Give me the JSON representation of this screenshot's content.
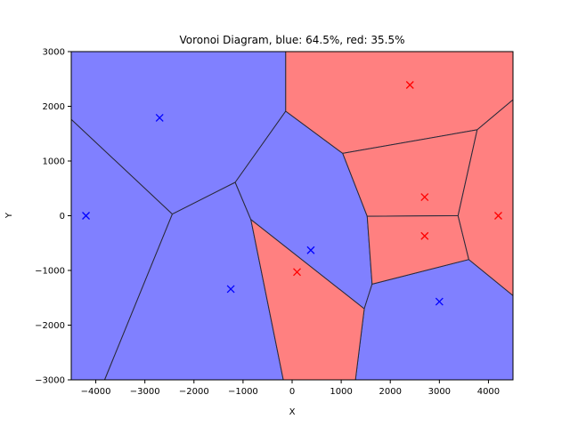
{
  "chart_data": {
    "type": "voronoi",
    "title": "Voronoi Diagram, blue: 64.5%, red: 35.5%",
    "xlabel": "X",
    "ylabel": "Y",
    "xlim": [
      -4500,
      4500
    ],
    "ylim": [
      -3000,
      3000
    ],
    "xticks": [
      -4000,
      -3000,
      -2000,
      -1000,
      0,
      1000,
      2000,
      3000,
      4000
    ],
    "yticks": [
      -3000,
      -2000,
      -1000,
      0,
      1000,
      2000,
      3000
    ],
    "colors": {
      "blue_fill": "#8080ff",
      "red_fill": "#ff8080",
      "blue_marker": "#0000ff",
      "red_marker": "#ff0000",
      "edge": "#2a2a3a"
    },
    "sites": [
      {
        "class": "blue",
        "x": -4200,
        "y": 0
      },
      {
        "class": "blue",
        "x": -2700,
        "y": 1790
      },
      {
        "class": "blue",
        "x": -1250,
        "y": -1340
      },
      {
        "class": "blue",
        "x": 380,
        "y": -630
      },
      {
        "class": "blue",
        "x": 3000,
        "y": -1570
      },
      {
        "class": "red",
        "x": 2400,
        "y": 2390
      },
      {
        "class": "red",
        "x": 2700,
        "y": 340
      },
      {
        "class": "red",
        "x": 2700,
        "y": -370
      },
      {
        "class": "red",
        "x": 4200,
        "y": 0
      },
      {
        "class": "red",
        "x": 100,
        "y": -1030
      }
    ],
    "cells": [
      {
        "class": "blue",
        "polygon": [
          [
            -4500,
            3000
          ],
          [
            -130,
            3000
          ],
          [
            -130,
            1910
          ],
          [
            -1160,
            610
          ],
          [
            -2440,
            30
          ],
          [
            -4500,
            1760
          ]
        ]
      },
      {
        "class": "blue",
        "polygon": [
          [
            -4500,
            1760
          ],
          [
            -2440,
            30
          ],
          [
            -3820,
            -3000
          ],
          [
            -4500,
            -3000
          ]
        ]
      },
      {
        "class": "blue",
        "polygon": [
          [
            -2440,
            30
          ],
          [
            -1160,
            610
          ],
          [
            -840,
            -70
          ],
          [
            -180,
            -3000
          ],
          [
            -3820,
            -3000
          ]
        ]
      },
      {
        "class": "blue",
        "polygon": [
          [
            -130,
            1910
          ],
          [
            1030,
            1140
          ],
          [
            1530,
            -10
          ],
          [
            1630,
            -1250
          ],
          [
            1470,
            -1700
          ],
          [
            -840,
            -70
          ],
          [
            -1160,
            610
          ]
        ]
      },
      {
        "class": "blue",
        "polygon": [
          [
            1470,
            -1700
          ],
          [
            1630,
            -1250
          ],
          [
            3600,
            -800
          ],
          [
            4500,
            -1460
          ],
          [
            4500,
            -3000
          ],
          [
            1290,
            -3000
          ]
        ]
      },
      {
        "class": "red",
        "polygon": [
          [
            -130,
            3000
          ],
          [
            4500,
            3000
          ],
          [
            4500,
            2120
          ],
          [
            3770,
            1570
          ],
          [
            1030,
            1140
          ],
          [
            -130,
            1910
          ]
        ]
      },
      {
        "class": "red",
        "polygon": [
          [
            1030,
            1140
          ],
          [
            3770,
            1570
          ],
          [
            3380,
            0
          ],
          [
            1530,
            -10
          ]
        ]
      },
      {
        "class": "red",
        "polygon": [
          [
            1530,
            -10
          ],
          [
            3380,
            0
          ],
          [
            3600,
            -800
          ],
          [
            1630,
            -1250
          ]
        ]
      },
      {
        "class": "red",
        "polygon": [
          [
            3770,
            1570
          ],
          [
            4500,
            2120
          ],
          [
            4500,
            -1460
          ],
          [
            3600,
            -800
          ],
          [
            3380,
            0
          ]
        ]
      },
      {
        "class": "red",
        "polygon": [
          [
            -840,
            -70
          ],
          [
            1470,
            -1700
          ],
          [
            1290,
            -3000
          ],
          [
            -180,
            -3000
          ]
        ]
      }
    ]
  }
}
